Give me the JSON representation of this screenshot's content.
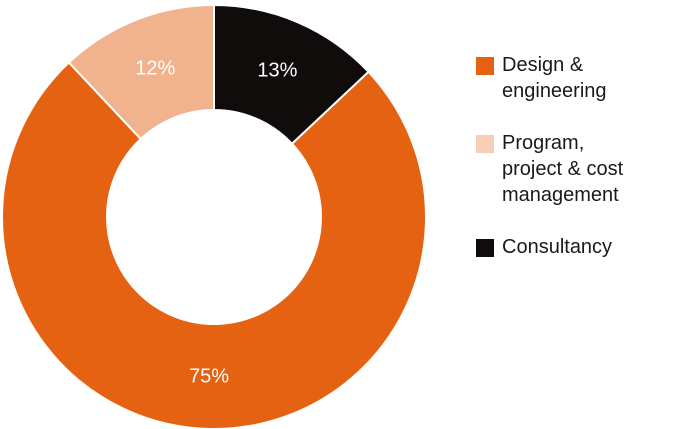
{
  "chart_data": {
    "type": "pie",
    "donut": true,
    "title": "",
    "legend_position": "right",
    "slices": [
      {
        "name": "Design & engineering",
        "label_lines": [
          "Design &",
          "engineering"
        ],
        "value": 75,
        "label": "75%",
        "color": "#e46212",
        "label_color": "#ffffff"
      },
      {
        "name": "Program, project & cost management",
        "label_lines": [
          "Program,",
          "project & cost",
          "management"
        ],
        "value": 12,
        "label": "12%",
        "color": "#f0b38e",
        "swatch_color": "#f5cfb6",
        "label_color": "#ffffff"
      },
      {
        "name": "Consultancy",
        "label_lines": [
          "Consultancy"
        ],
        "value": 13,
        "label": "13%",
        "color": "#100c0b",
        "label_color": "#ffffff"
      }
    ]
  }
}
